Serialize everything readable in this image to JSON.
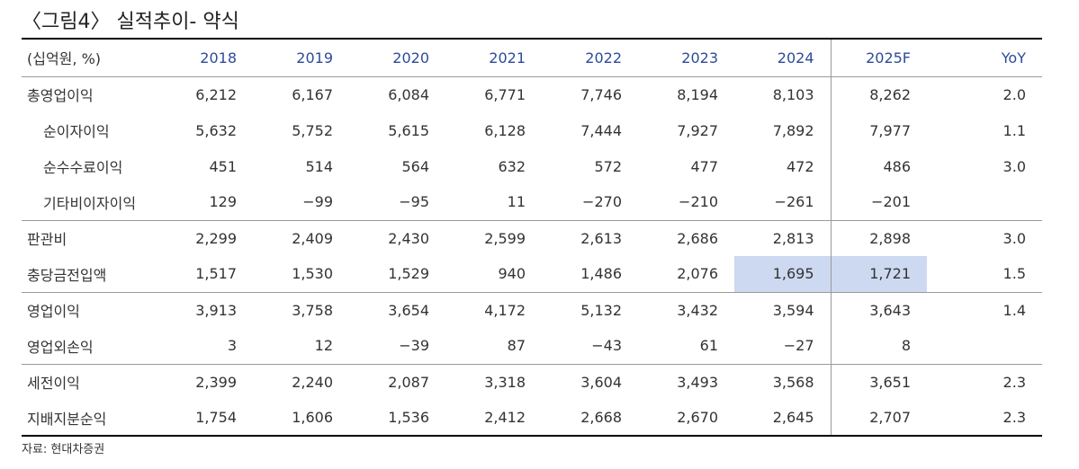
{
  "title": "〈그림4〉 실적추이- 약식",
  "table": {
    "unit_label": "(십억원, %)",
    "columns": [
      "2018",
      "2019",
      "2020",
      "2021",
      "2022",
      "2023",
      "2024",
      "2025F",
      "YoY"
    ],
    "rows": [
      {
        "label": "총영업이익",
        "values": [
          "6,212",
          "6,167",
          "6,084",
          "6,771",
          "7,746",
          "8,194",
          "8,103",
          "8,262",
          "2.0"
        ]
      },
      {
        "label": "순이자이익",
        "values": [
          "5,632",
          "5,752",
          "5,615",
          "6,128",
          "7,444",
          "7,927",
          "7,892",
          "7,977",
          "1.1"
        ]
      },
      {
        "label": "순수수료이익",
        "values": [
          "451",
          "514",
          "564",
          "632",
          "572",
          "477",
          "472",
          "486",
          "3.0"
        ]
      },
      {
        "label": "기타비이자이익",
        "values": [
          "129",
          "−99",
          "−95",
          "11",
          "−270",
          "−210",
          "−261",
          "−201",
          ""
        ]
      },
      {
        "label": "판관비",
        "values": [
          "2,299",
          "2,409",
          "2,430",
          "2,599",
          "2,613",
          "2,686",
          "2,813",
          "2,898",
          "3.0"
        ]
      },
      {
        "label": "충당금전입액",
        "values": [
          "1,517",
          "1,530",
          "1,529",
          "940",
          "1,486",
          "2,076",
          "1,695",
          "1,721",
          "1.5"
        ]
      },
      {
        "label": "영업이익",
        "values": [
          "3,913",
          "3,758",
          "3,654",
          "4,172",
          "5,132",
          "3,432",
          "3,594",
          "3,643",
          "1.4"
        ]
      },
      {
        "label": "영업외손익",
        "values": [
          "3",
          "12",
          "−39",
          "87",
          "−43",
          "61",
          "−27",
          "8",
          ""
        ]
      },
      {
        "label": "세전이익",
        "values": [
          "2,399",
          "2,240",
          "2,087",
          "3,318",
          "3,604",
          "3,493",
          "3,568",
          "3,651",
          "2.3"
        ]
      },
      {
        "label": "지배지분순익",
        "values": [
          "1,754",
          "1,606",
          "1,536",
          "2,412",
          "2,668",
          "2,670",
          "2,645",
          "2,707",
          "2.3"
        ]
      }
    ]
  },
  "source": "자료: 현대차증권",
  "colors": {
    "header_text": "#2e4b9a",
    "highlight": "#cdd9f0"
  }
}
